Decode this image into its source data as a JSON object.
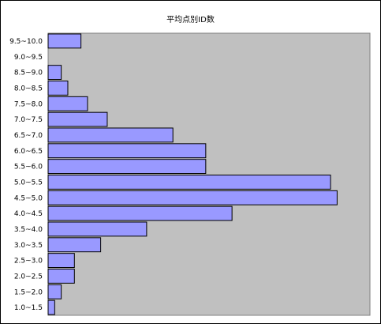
{
  "chart_data": {
    "type": "bar",
    "orientation": "horizontal",
    "title": "平均点別ID数",
    "xlabel": "",
    "ylabel": "",
    "categories": [
      "1.0~1.5",
      "1.5~2.0",
      "2.0~2.5",
      "2.5~3.0",
      "3.0~3.5",
      "3.5~4.0",
      "4.0~4.5",
      "4.5~5.0",
      "5.0~5.5",
      "5.5~6.0",
      "6.0~6.5",
      "6.5~7.0",
      "7.0~7.5",
      "7.5~8.0",
      "8.0~8.5",
      "8.5~9.0",
      "9.0~9.5",
      "9.5~10.0"
    ],
    "values": [
      2,
      4,
      8,
      8,
      16,
      30,
      56,
      88,
      86,
      48,
      48,
      38,
      18,
      12,
      6,
      4,
      0,
      10
    ],
    "xlim": [
      0,
      98
    ],
    "grid": false,
    "legend": "none",
    "colors": {
      "bar_fill": "#9999ff",
      "bar_stroke": "#000000",
      "plot_background": "#c0c0c0",
      "page_background": "#ffffff"
    }
  }
}
